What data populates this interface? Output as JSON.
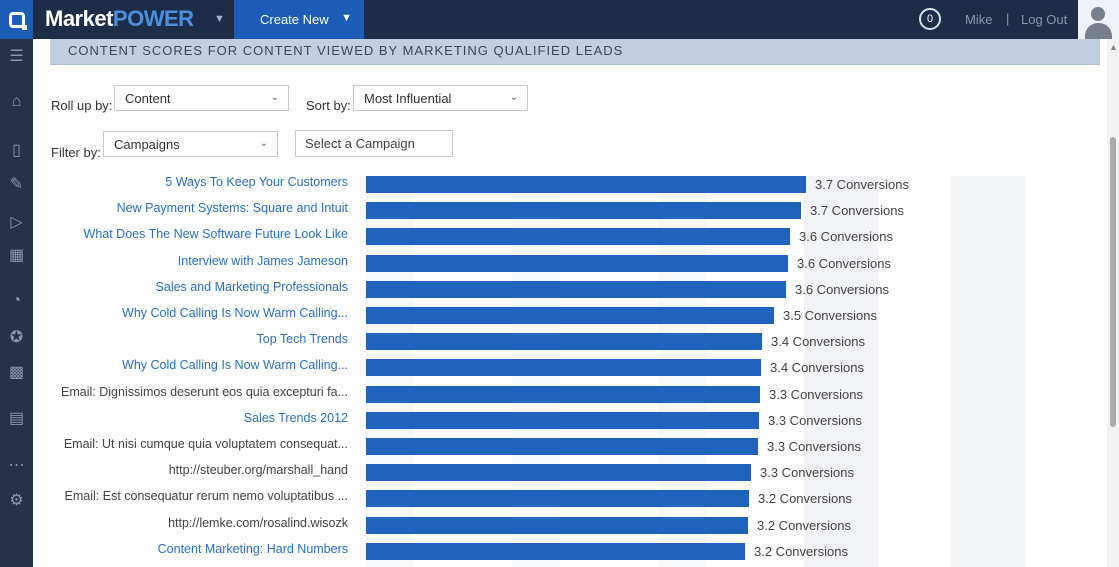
{
  "topbar": {
    "brand_part1": "Market",
    "brand_part2": "POWER",
    "create_new_label": "Create New",
    "notification_count": "0",
    "user_name": "Mike",
    "separator": "|",
    "logout_label": "Log Out"
  },
  "icons": {
    "logo": "app-logo-icon",
    "brand_menu": "chevron-down-icon",
    "create_menu": "chevron-down-icon",
    "avatar": "user-avatar-icon",
    "sidebar": [
      "menu-icon",
      "home-icon",
      "clipboard-icon",
      "pencil-icon",
      "megaphone-icon",
      "calendar-icon",
      "dashboard-icon",
      "star-icon",
      "reports-icon",
      "content-icon",
      "more-icon",
      "gear-icon"
    ]
  },
  "section": {
    "title": "CONTENT SCORES FOR CONTENT VIEWED BY MARKETING QUALIFIED LEADS"
  },
  "controls": {
    "rollup_label": "Roll up by:",
    "rollup_value": "Content",
    "sort_label": "Sort by:",
    "sort_value": "Most Influential",
    "filter_label": "Filter by:",
    "filter_value": "Campaigns",
    "campaign_value": "Select a Campaign"
  },
  "colors": {
    "topbar": "#1e2d47",
    "accent": "#1c5db8",
    "bar": "#1f63bd",
    "link": "#2a70c4"
  },
  "chart_data": {
    "type": "bar",
    "orientation": "horizontal",
    "value_suffix": " Conversions",
    "categories": [
      "5 Ways To Keep Your Customers",
      "New Payment Systems: Square and Intuit",
      "What Does The New Software Future Look Like",
      "Interview with James Jameson",
      "Sales and Marketing Professionals",
      "Why Cold Calling Is Now Warm Calling...",
      "Top Tech Trends",
      "Why Cold Calling Is Now Warm Calling...",
      "Email: Dignissimos deserunt eos quia excepturi fa...",
      "Sales Trends 2012",
      "Email: Ut nisi cumque quia voluptatem consequat...",
      "http://steuber.org/marshall_hand",
      "Email: Est consequatur rerum nemo voluptatibus ...",
      "http://lemke.com/rosalind.wisozk",
      "Content Marketing: Hard Numbers"
    ],
    "label_styles": [
      "link",
      "link",
      "link",
      "link",
      "link",
      "link",
      "link",
      "link",
      "plain",
      "link",
      "plain",
      "plain",
      "plain",
      "plain",
      "link"
    ],
    "values": [
      3.7,
      3.7,
      3.6,
      3.6,
      3.6,
      3.5,
      3.4,
      3.4,
      3.3,
      3.3,
      3.3,
      3.3,
      3.2,
      3.2,
      3.2
    ],
    "value_labels": [
      "3.7 Conversions",
      "3.7 Conversions",
      "3.6 Conversions",
      "3.6 Conversions",
      "3.6 Conversions",
      "3.5 Conversions",
      "3.4 Conversions",
      "3.4 Conversions",
      "3.3 Conversions",
      "3.3 Conversions",
      "3.3 Conversions",
      "3.3 Conversions",
      "3.2 Conversions",
      "3.2 Conversions",
      "3.2 Conversions"
    ],
    "bar_widths_ratio": [
      1.0,
      0.989,
      0.964,
      0.96,
      0.955,
      0.927,
      0.9,
      0.898,
      0.895,
      0.893,
      0.89,
      0.875,
      0.87,
      0.868,
      0.862
    ]
  }
}
